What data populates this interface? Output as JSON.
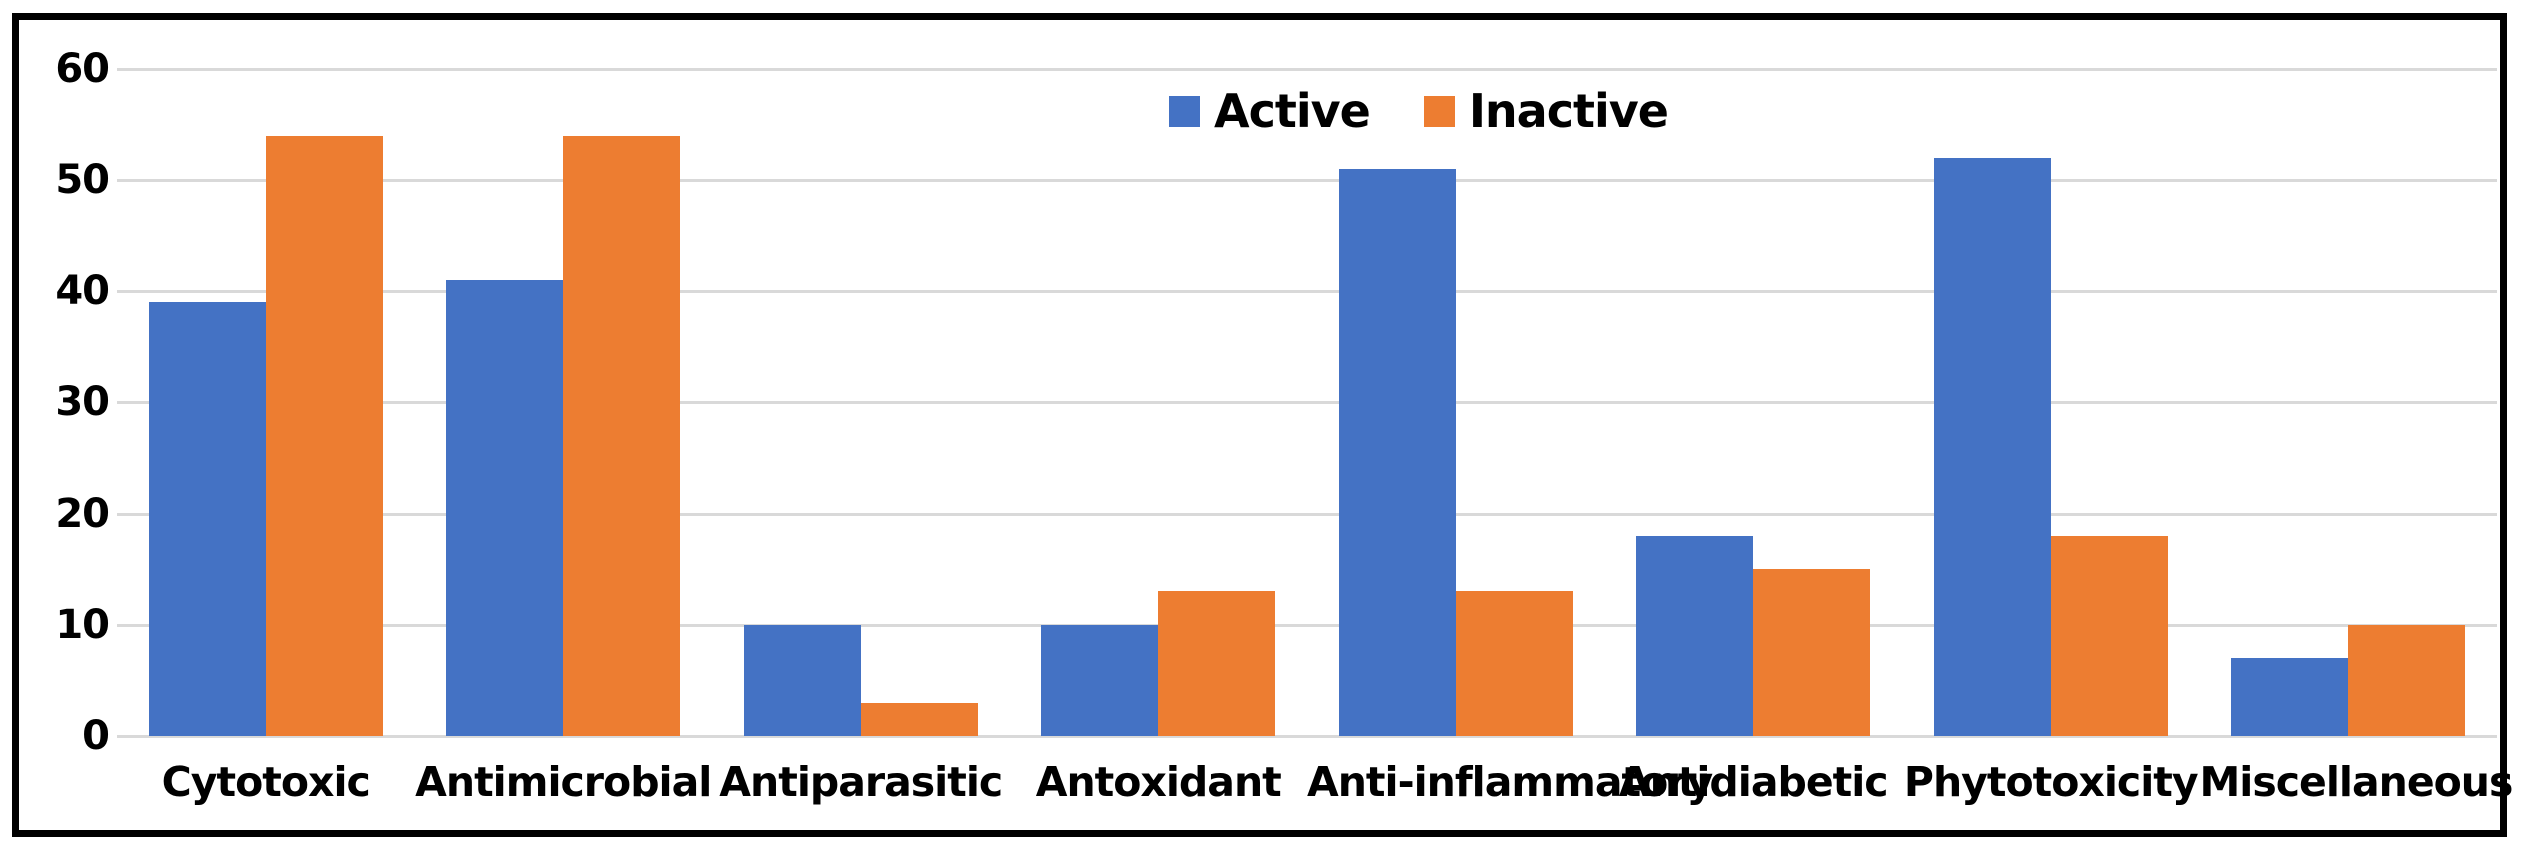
{
  "chart_data": {
    "type": "bar",
    "title": "",
    "xlabel": "",
    "ylabel": "",
    "categories": [
      "Cytotoxic",
      "Antimicrobial",
      "Antiparasitic",
      "Antoxidant",
      "Anti-inflammatory",
      "Antidiabetic",
      "Phytotoxicity",
      "Miscellaneous"
    ],
    "series": [
      {
        "name": "Active",
        "color": "#4472C4",
        "values": [
          39,
          41,
          10,
          10,
          51,
          18,
          52,
          7
        ]
      },
      {
        "name": "Inactive",
        "color": "#ED7D31",
        "values": [
          54,
          54,
          3,
          13,
          13,
          15,
          18,
          10
        ]
      }
    ],
    "ylim": [
      0,
      60
    ],
    "yticks": [
      0,
      10,
      20,
      30,
      40,
      50,
      60
    ],
    "grid": true,
    "gridline_color": "#D9D9D9",
    "legend_position": "top-center",
    "axis_text_color": "#000000",
    "frame_color": "#000000"
  }
}
